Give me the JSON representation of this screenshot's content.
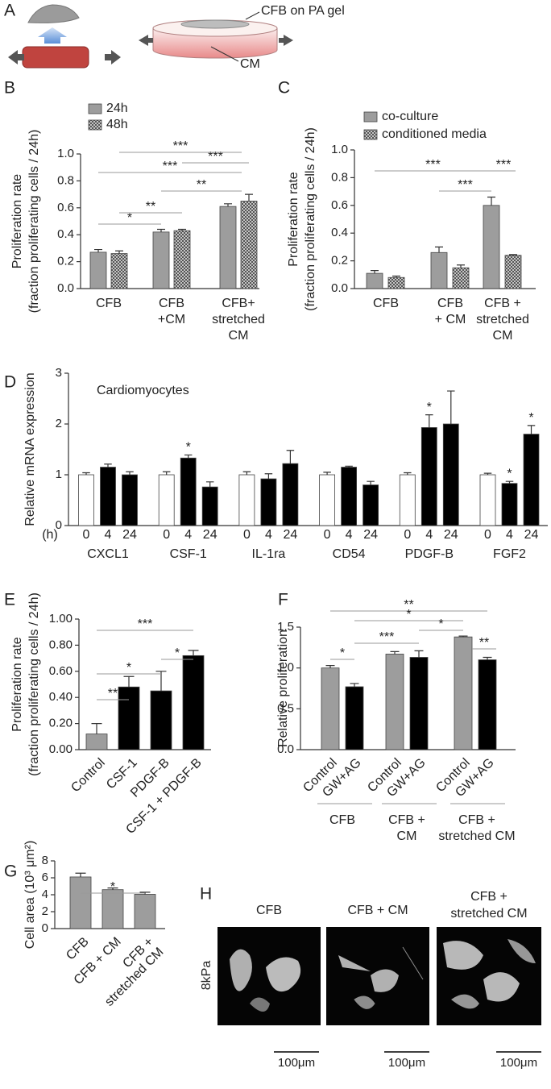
{
  "panel_a": {
    "label": "A",
    "texts": [
      "CFB on PA gel",
      "CM"
    ]
  },
  "chart_data": [
    {
      "type": "bar",
      "panel": "B",
      "ylabel": [
        "Proliferation rate",
        "(fraction proliferating cells / 24h)"
      ],
      "categories": [
        [
          "CFB"
        ],
        [
          "CFB",
          "+CM"
        ],
        [
          "CFB+",
          "stretched",
          "CM"
        ]
      ],
      "series": [
        {
          "name": "24h",
          "color": "#9d9d9d",
          "values": [
            0.27,
            0.42,
            0.61
          ],
          "errors": [
            0.02,
            0.02,
            0.02
          ]
        },
        {
          "name": "48h",
          "color": "#c4c4c4",
          "pattern": "checker",
          "values": [
            0.26,
            0.43,
            0.65
          ],
          "errors": [
            0.02,
            0.01,
            0.05
          ]
        }
      ],
      "ylim": [
        0,
        1
      ],
      "yticks": [
        {
          "value": 0,
          "label": "0.0"
        },
        0.2,
        0.4,
        0.6,
        0.8,
        {
          "value": 1,
          "label": "1.0"
        }
      ],
      "significance": [
        "*",
        "**",
        "**",
        "***",
        "***",
        "***"
      ]
    },
    {
      "type": "bar",
      "panel": "C",
      "ylabel": [
        "Proliferation rate",
        "(fraction proliferating cells / 24h)"
      ],
      "categories": [
        [
          "CFB"
        ],
        [
          "CFB",
          "+ CM"
        ],
        [
          "CFB +",
          "stretched",
          "CM"
        ]
      ],
      "series": [
        {
          "name": "co-culture",
          "color": "#9d9d9d",
          "values": [
            0.11,
            0.26,
            0.6
          ],
          "errors": [
            0.02,
            0.04,
            0.06
          ]
        },
        {
          "name": "conditioned media",
          "color": "#c4c4c4",
          "pattern": "checker",
          "values": [
            0.08,
            0.15,
            0.24
          ],
          "errors": [
            0.01,
            0.02,
            0.005
          ]
        }
      ],
      "ylim": [
        0,
        1
      ],
      "yticks": [
        {
          "value": 0,
          "label": "0.0"
        },
        0.2,
        0.4,
        0.6,
        0.8,
        {
          "value": 1,
          "label": "1.0"
        }
      ],
      "significance": [
        "***",
        "***",
        "***"
      ]
    },
    {
      "type": "bar",
      "panel": "D",
      "title": "Cardiomyocytes",
      "ylabel": "Relative mRNA expression",
      "x_unit": "(h)",
      "categories": [
        "CXCL1",
        "CSF-1",
        "IL-1ra",
        "CD54",
        "PDGF-B",
        "FGF2"
      ],
      "series": [
        {
          "name": "0",
          "color": "#ffffff",
          "values": [
            1,
            1,
            1,
            1,
            1,
            1
          ],
          "errors": [
            0.04,
            0.06,
            0.06,
            0.05,
            0.04,
            0.03
          ]
        },
        {
          "name": "4",
          "color": "#000000",
          "values": [
            1.15,
            1.33,
            0.92,
            1.15,
            1.93,
            0.83
          ],
          "errors": [
            0.06,
            0.06,
            0.1,
            0.02,
            0.25,
            0.04
          ]
        },
        {
          "name": "24",
          "color": "#000000",
          "values": [
            1,
            0.76,
            1.22,
            0.8,
            2,
            1.8
          ],
          "errors": [
            0.06,
            0.1,
            0.26,
            0.07,
            0.65,
            0.17
          ]
        }
      ],
      "ylim": [
        0,
        3
      ],
      "yticks": [
        0,
        1,
        2,
        3
      ],
      "significance": [
        "*",
        "*",
        "*",
        "*"
      ]
    },
    {
      "type": "bar",
      "panel": "E",
      "ylabel": [
        "Proliferation rate",
        "(fraction proliferating cells / 24h)"
      ],
      "categories": [
        [
          "Control"
        ],
        [
          "CSF-1"
        ],
        [
          "PDGF-B"
        ],
        [
          "CSF-1 + PDGF-B"
        ]
      ],
      "series": [
        {
          "colors": [
            "#9d9d9d",
            "#000000",
            "#000000",
            "#000000"
          ],
          "values": [
            0.12,
            0.48,
            0.45,
            0.72
          ],
          "errors": [
            0.08,
            0.08,
            0.15,
            0.04
          ]
        }
      ],
      "ylim": [
        0,
        1
      ],
      "yticks": [
        {
          "value": 0,
          "label": "0.00"
        },
        {
          "value": 0.2,
          "label": "0.20"
        },
        {
          "value": 0.4,
          "label": "0.40"
        },
        {
          "value": 0.6,
          "label": "0.60"
        },
        {
          "value": 0.8,
          "label": "0.80"
        },
        {
          "value": 1,
          "label": "1.00"
        }
      ],
      "significance": [
        "**",
        "*",
        "*",
        "***"
      ]
    },
    {
      "type": "bar",
      "panel": "F",
      "ylabel": "Relative proliferation",
      "categories": [
        [
          "CFB"
        ],
        [
          "CFB +",
          "CM"
        ],
        [
          "CFB +",
          "stretched CM"
        ]
      ],
      "series": [
        {
          "name": "Control",
          "color": "#9d9d9d",
          "values": [
            1,
            1.17,
            1.38
          ],
          "errors": [
            0.03,
            0.03,
            0.01
          ]
        },
        {
          "name": "GW+AG",
          "color": "#000000",
          "values": [
            0.77,
            1.13,
            1.1
          ],
          "errors": [
            0.04,
            0.08,
            0.03
          ]
        }
      ],
      "ylim": [
        0,
        1.5
      ],
      "yticks": [
        {
          "value": 0,
          "label": "0.0"
        },
        0.5,
        {
          "value": 1,
          "label": "1.0"
        },
        1.5
      ],
      "significance": [
        "**",
        "*",
        "*",
        "**",
        "*",
        "***"
      ]
    },
    {
      "type": "bar",
      "panel": "G",
      "ylabel": "Cell area (10³ μm²)",
      "categories": [
        [
          "CFB"
        ],
        [
          "CFB + CM"
        ],
        [
          "CFB +",
          "stretched CM"
        ]
      ],
      "series": [
        {
          "color": "#9d9d9d",
          "values": [
            6.1,
            4.6,
            4.05
          ],
          "errors": [
            0.45,
            0.2,
            0.25
          ]
        }
      ],
      "ylim": [
        0,
        8
      ],
      "yticks": [
        0,
        2,
        4,
        6,
        8
      ],
      "significance": [
        "*"
      ]
    }
  ],
  "panel_h": {
    "label": "H",
    "titles": [
      [
        "CFB"
      ],
      [
        "CFB + CM"
      ],
      [
        "CFB +",
        "stretched CM"
      ]
    ],
    "row_label": "8kPa",
    "scale_bar": "100μm"
  }
}
